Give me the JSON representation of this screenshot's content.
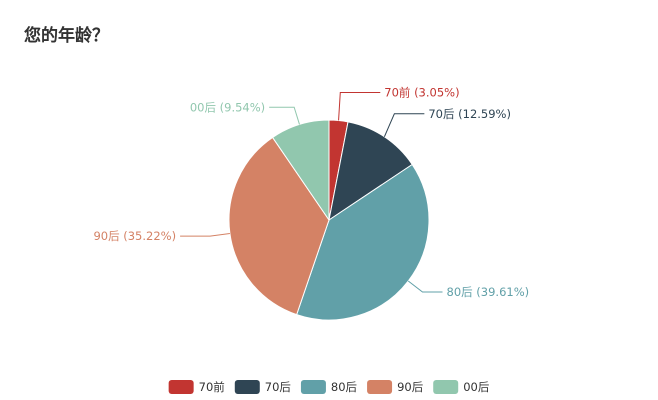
{
  "question": {
    "title": "您的年龄？"
  },
  "chart_data": {
    "type": "pie",
    "title": "您的年龄？",
    "slices": [
      {
        "label": "70前",
        "percent": 3.05,
        "color": "#c23531"
      },
      {
        "label": "70后",
        "percent": 12.59,
        "color": "#2f4554"
      },
      {
        "label": "80后",
        "percent": 39.61,
        "color": "#61a0a8"
      },
      {
        "label": "90后",
        "percent": 35.22,
        "color": "#d48265"
      },
      {
        "label": "00后",
        "percent": 9.54,
        "color": "#91c7ae"
      }
    ],
    "legend": {
      "position": "bottom",
      "items": [
        "70前",
        "70后",
        "80后",
        "90后",
        "00后"
      ]
    }
  }
}
